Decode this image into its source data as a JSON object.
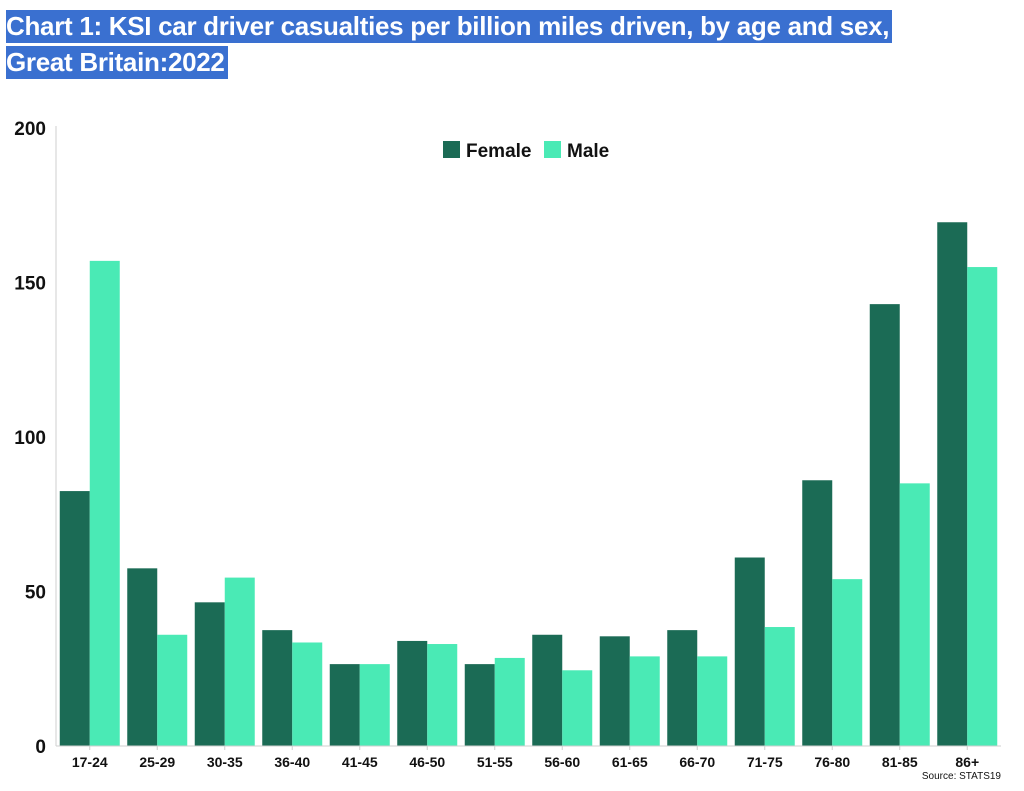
{
  "chart_data": {
    "type": "bar",
    "title": "Chart 1: KSI car driver casualties per billion miles driven, by age and sex, Great Britain:2022",
    "xlabel": "",
    "ylabel": "",
    "ylim": [
      0,
      200
    ],
    "yticks": [
      "0",
      "50",
      "100",
      "150",
      "200"
    ],
    "ytick_values": [
      0,
      50,
      100,
      150,
      200
    ],
    "categories": [
      "17-24",
      "25-29",
      "30-35",
      "36-40",
      "41-45",
      "46-50",
      "51-55",
      "56-60",
      "61-65",
      "66-70",
      "71-75",
      "76-80",
      "81-85",
      "86+"
    ],
    "series": [
      {
        "name": "Female",
        "color": "#1b6b55",
        "values": [
          82.5,
          57.5,
          46.5,
          37.5,
          26.5,
          34,
          26.5,
          36,
          35.5,
          37.5,
          61,
          86,
          143,
          169.5
        ]
      },
      {
        "name": "Male",
        "color": "#4aeab5",
        "values": [
          157,
          36,
          54.5,
          33.5,
          26.5,
          33,
          28.5,
          24.5,
          29,
          29,
          38.5,
          54,
          85,
          155
        ]
      }
    ],
    "legend": {
      "position": "top-center",
      "items": [
        "Female",
        "Male"
      ]
    },
    "source": "Source: STATS19",
    "grid": false
  }
}
